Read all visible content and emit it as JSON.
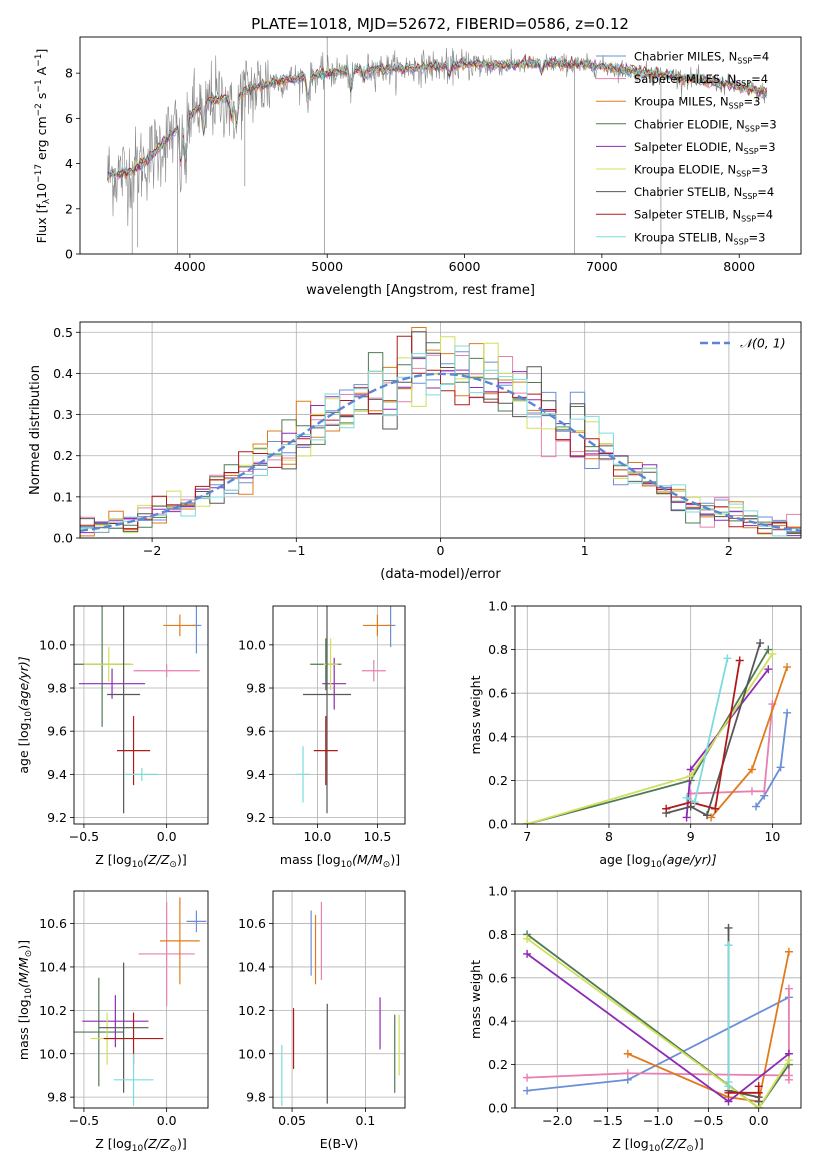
{
  "figure": {
    "title": "PLATE=1018, MJD=52672, FIBERID=0586, z=0.12"
  },
  "colors": {
    "chabrier_miles": "#6a8fd8",
    "salpeter_miles": "#e87fb0",
    "kroupa_miles": "#e07b1c",
    "chabrier_elodie": "#4f7a54",
    "salpeter_elodie": "#8e2bb5",
    "kroupa_elodie": "#cfe05a",
    "chabrier_stelib": "#575757",
    "salpeter_stelib": "#b01a1a",
    "kroupa_stelib": "#7ddbdb",
    "data": "#888888",
    "normal": "#5b86d6"
  },
  "chart_data": [
    {
      "id": "spectrum",
      "type": "line",
      "title": "PLATE=1018, MJD=52672, FIBERID=0586, z=0.12",
      "xlabel": "wavelength [Angstrom, rest frame]",
      "ylabel_main": "Flux [f",
      "ylabel_sub_lambda": "λ",
      "ylabel_mid": "10",
      "ylabel_exp17": "−17",
      "ylabel_units": " erg cm",
      "ylabel_exp2": "−2",
      "ylabel_s": " s",
      "ylabel_exp1": "−1",
      "ylabel_A": " A",
      "ylabel_exp1b": "−1",
      "ylabel_end": "]",
      "xlim": [
        3200,
        8450
      ],
      "ylim": [
        0,
        9.6
      ],
      "xticks": [
        4000,
        5000,
        6000,
        7000,
        8000
      ],
      "yticks": [
        0,
        2,
        4,
        6,
        8
      ],
      "continuum": [
        [
          3400,
          3.5
        ],
        [
          3550,
          3.6
        ],
        [
          3700,
          4.2
        ],
        [
          3850,
          5.2
        ],
        [
          3950,
          5.9
        ],
        [
          4050,
          6.4
        ],
        [
          4150,
          6.8
        ],
        [
          4300,
          6.9
        ],
        [
          4450,
          7.3
        ],
        [
          4600,
          7.6
        ],
        [
          4800,
          7.8
        ],
        [
          5000,
          8.0
        ],
        [
          5200,
          8.15
        ],
        [
          5500,
          8.2
        ],
        [
          5800,
          8.3
        ],
        [
          6000,
          8.4
        ],
        [
          6300,
          8.35
        ],
        [
          6600,
          8.45
        ],
        [
          6900,
          8.35
        ],
        [
          7100,
          8.2
        ],
        [
          7400,
          7.95
        ],
        [
          7700,
          7.7
        ],
        [
          8000,
          7.4
        ],
        [
          8200,
          7.1
        ]
      ],
      "absorption": [
        [
          3934,
          3.8
        ],
        [
          3969,
          3.9
        ],
        [
          4102,
          5.2
        ],
        [
          4304,
          5.9
        ],
        [
          4340,
          5.6
        ],
        [
          4861,
          6.7
        ],
        [
          5175,
          7.2
        ],
        [
          5270,
          7.7
        ],
        [
          5890,
          7.9
        ],
        [
          6563,
          8.0
        ]
      ],
      "spikes": [
        [
          3580,
          0
        ],
        [
          3620,
          0.3
        ],
        [
          3910,
          0
        ],
        [
          4400,
          3.0
        ],
        [
          4980,
          0
        ],
        [
          5000,
          9.6
        ],
        [
          6800,
          0
        ],
        [
          7430,
          0
        ]
      ],
      "legend": [
        {
          "key": "chabrier_miles",
          "name": "Chabrier MILES, N",
          "sub": "SSP",
          "value": "=4"
        },
        {
          "key": "salpeter_miles",
          "name": "Salpeter MILES, N",
          "sub": "SSP",
          "value": "=4"
        },
        {
          "key": "kroupa_miles",
          "name": "Kroupa MILES, N",
          "sub": "SSP",
          "value": "=3"
        },
        {
          "key": "chabrier_elodie",
          "name": "Chabrier ELODIE, N",
          "sub": "SSP",
          "value": "=3"
        },
        {
          "key": "salpeter_elodie",
          "name": "Salpeter ELODIE, N",
          "sub": "SSP",
          "value": "=3"
        },
        {
          "key": "kroupa_elodie",
          "name": "Kroupa ELODIE, N",
          "sub": "SSP",
          "value": "=3"
        },
        {
          "key": "chabrier_stelib",
          "name": "Chabrier STELIB, N",
          "sub": "SSP",
          "value": "=4"
        },
        {
          "key": "salpeter_stelib",
          "name": "Salpeter STELIB, N",
          "sub": "SSP",
          "value": "=4"
        },
        {
          "key": "kroupa_stelib",
          "name": "Kroupa STELIB, N",
          "sub": "SSP",
          "value": "=3"
        }
      ],
      "legend_placement": "upper right"
    },
    {
      "id": "residuals",
      "type": "step",
      "xlabel": "(data-model)/error",
      "ylabel": "Normed distribution",
      "xlim": [
        -2.5,
        2.5
      ],
      "ylim": [
        0,
        0.525
      ],
      "xticks": [
        -2,
        -1,
        0,
        1,
        2
      ],
      "yticks": [
        0.0,
        0.1,
        0.2,
        0.3,
        0.4,
        0.5
      ],
      "bin_width": 0.1,
      "legend": "𝒩(0, 1)",
      "legend_placement": "upper right",
      "grid": true
    },
    {
      "id": "age_vs_Z",
      "type": "errorbar",
      "xlabel_pre": "Z [log",
      "xlabel_sub": "10",
      "xlabel_post": "(Z/Z",
      "xlabel_sun": "⊙",
      "xlabel_end": ")]",
      "ylabel_pre": "age  [log",
      "ylabel_sub": "10",
      "ylabel_post": "(age/yr)]",
      "xlim": [
        -0.56,
        0.25
      ],
      "ylim": [
        9.17,
        10.18
      ],
      "xticks": [
        -0.5,
        0.0
      ],
      "yticks": [
        9.2,
        9.4,
        9.6,
        9.8,
        10.0
      ],
      "points": [
        {
          "key": "chabrier_miles",
          "x": 0.18,
          "y": 10.09,
          "xerr": 0.03,
          "yerr": 0.13
        },
        {
          "key": "salpeter_miles",
          "x": 0.0,
          "y": 9.88,
          "xerr": 0.2,
          "yerr": 0.03
        },
        {
          "key": "kroupa_miles",
          "x": 0.08,
          "y": 10.09,
          "xerr": 0.1,
          "yerr": 0.05
        },
        {
          "key": "chabrier_elodie",
          "x": -0.39,
          "y": 9.91,
          "xerr": 0.17,
          "yerr": 0.29
        },
        {
          "key": "salpeter_elodie",
          "x": -0.33,
          "y": 9.82,
          "xerr": 0.2,
          "yerr": 0.07
        },
        {
          "key": "kroupa_elodie",
          "x": -0.35,
          "y": 9.91,
          "xerr": 0.15,
          "yerr": 0.08
        },
        {
          "key": "chabrier_stelib",
          "x": -0.26,
          "y": 9.77,
          "xerr": 0.1,
          "yerr": 0.55
        },
        {
          "key": "salpeter_stelib",
          "x": -0.2,
          "y": 9.51,
          "xerr": 0.1,
          "yerr": 0.16
        },
        {
          "key": "kroupa_stelib",
          "x": -0.15,
          "y": 9.4,
          "xerr": 0.1,
          "yerr": 0.03
        }
      ]
    },
    {
      "id": "age_vs_mass",
      "type": "errorbar",
      "xlabel_pre": "mass [log",
      "xlabel_sub": "10",
      "xlabel_post": "(M/M",
      "xlabel_sun": "⊙",
      "xlabel_end": ")]",
      "xlim": [
        9.63,
        10.73
      ],
      "ylim": [
        9.17,
        10.18
      ],
      "xticks": [
        10.0,
        10.5
      ],
      "yticks": [
        9.2,
        9.4,
        9.6,
        9.8,
        10.0
      ],
      "points": [
        {
          "key": "chabrier_miles",
          "x": 10.61,
          "y": 10.09,
          "xerr": 0.04,
          "yerr": 0.1
        },
        {
          "key": "salpeter_miles",
          "x": 10.47,
          "y": 9.88,
          "xerr": 0.1,
          "yerr": 0.05
        },
        {
          "key": "kroupa_miles",
          "x": 10.5,
          "y": 10.09,
          "xerr": 0.12,
          "yerr": 0.05
        },
        {
          "key": "chabrier_elodie",
          "x": 10.07,
          "y": 9.91,
          "xerr": 0.13,
          "yerr": 0.12
        },
        {
          "key": "salpeter_elodie",
          "x": 10.14,
          "y": 9.82,
          "xerr": 0.1,
          "yerr": 0.12
        },
        {
          "key": "kroupa_elodie",
          "x": 10.11,
          "y": 9.91,
          "xerr": 0.06,
          "yerr": 0.12
        },
        {
          "key": "chabrier_stelib",
          "x": 10.08,
          "y": 9.77,
          "xerr": 0.2,
          "yerr": 0.55
        },
        {
          "key": "salpeter_stelib",
          "x": 10.07,
          "y": 9.51,
          "xerr": 0.1,
          "yerr": 0.16
        },
        {
          "key": "kroupa_stelib",
          "x": 9.88,
          "y": 9.4,
          "xerr": 0.06,
          "yerr": 0.13
        }
      ]
    },
    {
      "id": "mass_weight_vs_age",
      "type": "line",
      "xlabel_pre": "age  [log",
      "xlabel_sub": "10",
      "xlabel_post": "(age/yr)]",
      "ylabel": "mass weight",
      "xlim": [
        6.85,
        10.35
      ],
      "ylim": [
        0,
        1
      ],
      "xticks": [
        7,
        8,
        9,
        10
      ],
      "yticks": [
        0.0,
        0.2,
        0.4,
        0.6,
        0.8,
        1.0
      ],
      "series": [
        {
          "key": "chabrier_miles",
          "points": [
            [
              9.8,
              0.08
            ],
            [
              9.9,
              0.13
            ],
            [
              10.1,
              0.26
            ],
            [
              10.18,
              0.51
            ]
          ]
        },
        {
          "key": "salpeter_miles",
          "points": [
            [
              9.0,
              0.14
            ],
            [
              9.75,
              0.15
            ],
            [
              9.9,
              0.15
            ],
            [
              10.0,
              0.55
            ]
          ]
        },
        {
          "key": "kroupa_miles",
          "points": [
            [
              9.25,
              0.03
            ],
            [
              9.75,
              0.25
            ],
            [
              10.18,
              0.72
            ]
          ]
        },
        {
          "key": "chabrier_elodie",
          "points": [
            [
              7.0,
              0.0
            ],
            [
              9.0,
              0.2
            ],
            [
              9.95,
              0.8
            ]
          ]
        },
        {
          "key": "salpeter_elodie",
          "points": [
            [
              8.95,
              0.03
            ],
            [
              9.0,
              0.25
            ],
            [
              9.95,
              0.71
            ]
          ]
        },
        {
          "key": "kroupa_elodie",
          "points": [
            [
              7.0,
              0.0
            ],
            [
              9.0,
              0.22
            ],
            [
              10.0,
              0.78
            ]
          ]
        },
        {
          "key": "chabrier_stelib",
          "points": [
            [
              8.7,
              0.05
            ],
            [
              9.0,
              0.08
            ],
            [
              9.2,
              0.04
            ],
            [
              9.85,
              0.83
            ]
          ]
        },
        {
          "key": "salpeter_stelib",
          "points": [
            [
              8.7,
              0.07
            ],
            [
              9.0,
              0.1
            ],
            [
              9.3,
              0.07
            ],
            [
              9.6,
              0.75
            ]
          ]
        },
        {
          "key": "kroupa_stelib",
          "points": [
            [
              8.95,
              0.12
            ],
            [
              9.05,
              0.1
            ],
            [
              9.45,
              0.76
            ]
          ]
        }
      ]
    },
    {
      "id": "mass_vs_Z",
      "type": "errorbar",
      "xlabel_pre": "Z [log",
      "xlabel_sub": "10",
      "xlabel_post": "(Z/Z",
      "xlabel_sun": "⊙",
      "xlabel_end": ")]",
      "ylabel_pre": "mass [log",
      "ylabel_sub": "10",
      "ylabel_post": "(M/M",
      "ylabel_sun": "⊙",
      "ylabel_end": ")]",
      "xlim": [
        -0.56,
        0.25
      ],
      "ylim": [
        9.75,
        10.75
      ],
      "xticks": [
        -0.5,
        0.0
      ],
      "yticks": [
        9.8,
        10.0,
        10.2,
        10.4,
        10.6
      ],
      "points": [
        {
          "key": "chabrier_miles",
          "x": 0.18,
          "y": 10.61,
          "xerr": 0.06,
          "yerr": 0.05
        },
        {
          "key": "salpeter_miles",
          "x": 0.0,
          "y": 10.46,
          "xerr": 0.17,
          "yerr": 0.24
        },
        {
          "key": "kroupa_miles",
          "x": 0.08,
          "y": 10.52,
          "xerr": 0.12,
          "yerr": 0.2
        },
        {
          "key": "chabrier_elodie",
          "x": -0.41,
          "y": 10.1,
          "xerr": 0.15,
          "yerr": 0.25
        },
        {
          "key": "salpeter_elodie",
          "x": -0.31,
          "y": 10.15,
          "xerr": 0.2,
          "yerr": 0.12
        },
        {
          "key": "kroupa_elodie",
          "x": -0.36,
          "y": 10.07,
          "xerr": 0.1,
          "yerr": 0.12
        },
        {
          "key": "chabrier_stelib",
          "x": -0.26,
          "y": 10.12,
          "xerr": 0.15,
          "yerr": 0.3
        },
        {
          "key": "salpeter_stelib",
          "x": -0.2,
          "y": 10.07,
          "xerr": 0.18,
          "yerr": 0.12
        },
        {
          "key": "kroupa_stelib",
          "x": -0.2,
          "y": 9.88,
          "xerr": 0.12,
          "yerr": 0.12
        }
      ]
    },
    {
      "id": "mass_vs_ebv",
      "type": "errorbar",
      "xlabel": "E(B-V)",
      "xlim": [
        0.037,
        0.127
      ],
      "ylim": [
        9.75,
        10.75
      ],
      "xticks": [
        0.05,
        0.1
      ],
      "yticks": [
        9.8,
        10.0,
        10.2,
        10.4,
        10.6
      ],
      "points": [
        {
          "key": "chabrier_miles",
          "x": 0.063,
          "y": 10.51,
          "xerr": 0,
          "yerr": 0.15
        },
        {
          "key": "salpeter_miles",
          "x": 0.07,
          "y": 10.52,
          "xerr": 0,
          "yerr": 0.18
        },
        {
          "key": "kroupa_miles",
          "x": 0.066,
          "y": 10.48,
          "xerr": 0,
          "yerr": 0.16
        },
        {
          "key": "chabrier_elodie",
          "x": 0.12,
          "y": 10.0,
          "xerr": 0,
          "yerr": 0.18
        },
        {
          "key": "salpeter_elodie",
          "x": 0.11,
          "y": 10.14,
          "xerr": 0,
          "yerr": 0.12
        },
        {
          "key": "kroupa_elodie",
          "x": 0.123,
          "y": 10.04,
          "xerr": 0,
          "yerr": 0.14
        },
        {
          "key": "chabrier_stelib",
          "x": 0.074,
          "y": 10.0,
          "xerr": 0,
          "yerr": 0.23
        },
        {
          "key": "salpeter_stelib",
          "x": 0.051,
          "y": 10.07,
          "xerr": 0,
          "yerr": 0.14
        },
        {
          "key": "kroupa_stelib",
          "x": 0.043,
          "y": 9.9,
          "xerr": 0,
          "yerr": 0.14
        }
      ]
    },
    {
      "id": "mass_weight_vs_Z",
      "type": "line",
      "xlabel_pre": "Z [log",
      "xlabel_sub": "10",
      "xlabel_post": "(Z/Z",
      "xlabel_sun": "⊙",
      "xlabel_end": ")]",
      "ylabel": "mass weight",
      "xlim": [
        -2.42,
        0.42
      ],
      "ylim": [
        0,
        1
      ],
      "xticks": [
        -2.0,
        -1.5,
        -1.0,
        -0.5,
        0.0
      ],
      "yticks": [
        0.0,
        0.2,
        0.4,
        0.6,
        0.8,
        1.0
      ],
      "series": [
        {
          "key": "chabrier_miles",
          "points": [
            [
              -2.3,
              0.08
            ],
            [
              -1.3,
              0.13
            ],
            [
              0.3,
              0.51
            ]
          ]
        },
        {
          "key": "salpeter_miles",
          "points": [
            [
              -2.3,
              0.14
            ],
            [
              -1.3,
              0.16
            ],
            [
              0.3,
              0.15
            ],
            [
              0.3,
              0.55
            ],
            [
              0.3,
              0.13
            ]
          ]
        },
        {
          "key": "kroupa_miles",
          "points": [
            [
              -1.3,
              0.25
            ],
            [
              -0.3,
              0.05
            ],
            [
              0.0,
              0.03
            ],
            [
              0.3,
              0.72
            ]
          ]
        },
        {
          "key": "chabrier_elodie",
          "points": [
            [
              -2.3,
              0.8
            ],
            [
              0.0,
              0.0
            ],
            [
              0.3,
              0.2
            ]
          ]
        },
        {
          "key": "salpeter_elodie",
          "points": [
            [
              -2.3,
              0.71
            ],
            [
              -0.3,
              0.03
            ],
            [
              0.3,
              0.25
            ]
          ]
        },
        {
          "key": "kroupa_elodie",
          "points": [
            [
              -2.3,
              0.78
            ],
            [
              0.0,
              0.0
            ],
            [
              0.3,
              0.22
            ]
          ]
        },
        {
          "key": "chabrier_stelib",
          "points": [
            [
              -0.3,
              0.83
            ],
            [
              -0.3,
              0.08
            ],
            [
              0.0,
              0.05
            ],
            [
              0.0,
              0.03
            ]
          ]
        },
        {
          "key": "salpeter_stelib",
          "points": [
            [
              -0.3,
              0.07
            ],
            [
              0.0,
              0.07
            ],
            [
              0.0,
              0.1
            ]
          ]
        },
        {
          "key": "kroupa_stelib",
          "points": [
            [
              -0.3,
              0.75
            ],
            [
              -0.3,
              0.1
            ],
            [
              -0.3,
              0.12
            ]
          ]
        }
      ]
    }
  ]
}
